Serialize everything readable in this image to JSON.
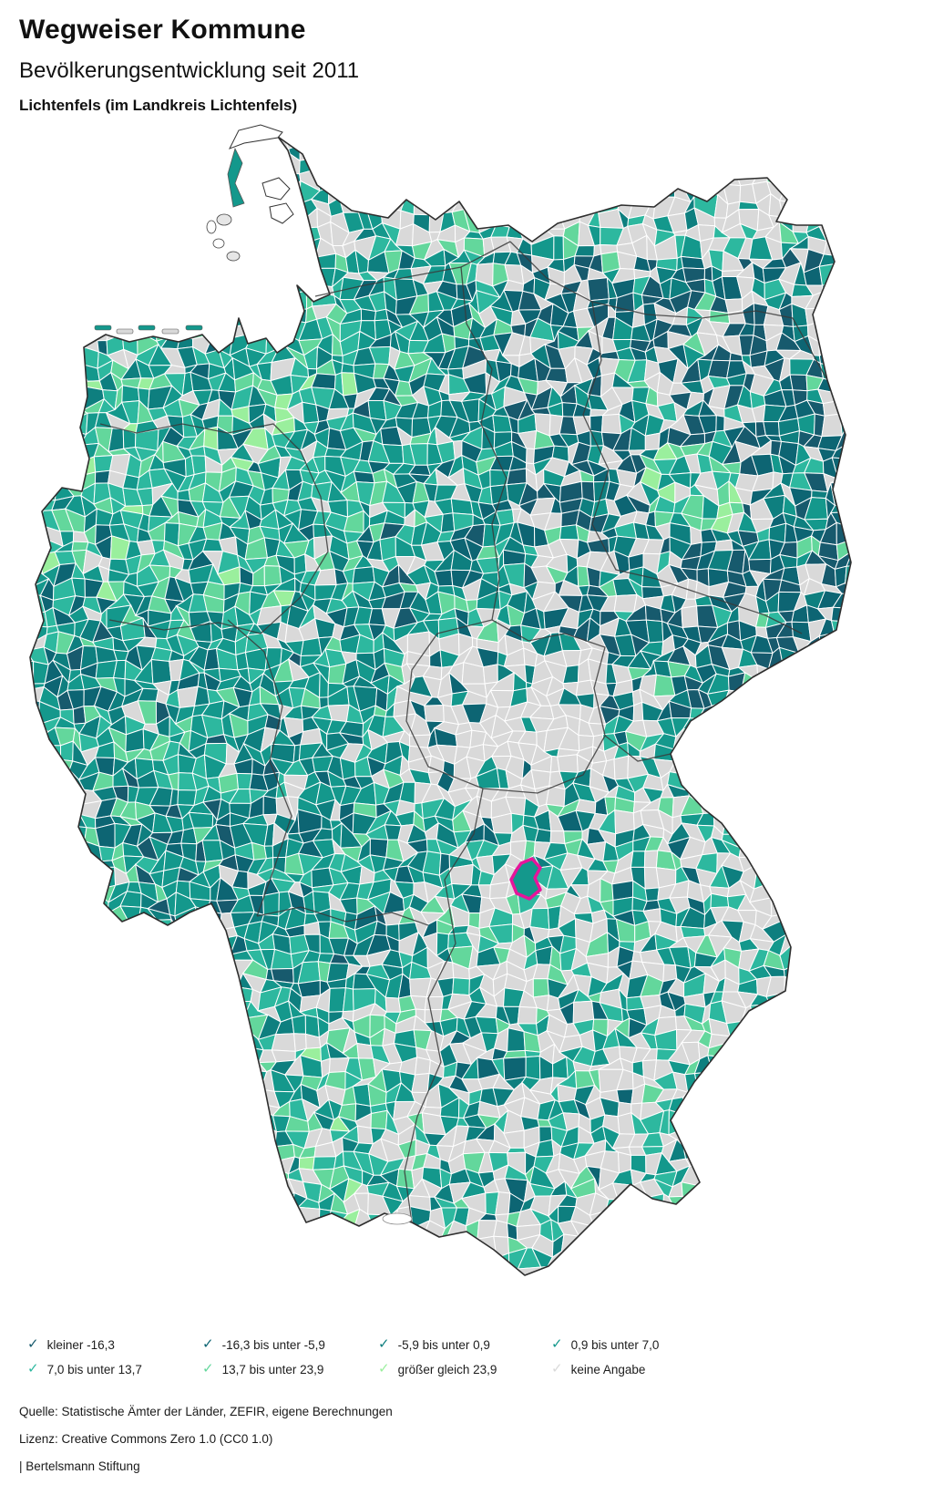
{
  "header": {
    "title": "Wegweiser Kommune",
    "subtitle": "Bevölkerungsentwicklung seit 2011",
    "region": "Lichtenfels (im Landkreis Lichtenfels)"
  },
  "legend": {
    "check_glyph": "✓",
    "items": [
      {
        "label": "kleiner -16,3",
        "color": "#175a6d"
      },
      {
        "label": "-16,3 bis unter -5,9",
        "color": "#0d6573"
      },
      {
        "label": "-5,9 bis unter 0,9",
        "color": "#0e7f7f"
      },
      {
        "label": "0,9 bis unter 7,0",
        "color": "#14988c"
      },
      {
        "label": "7,0 bis unter 13,7",
        "color": "#2db89f"
      },
      {
        "label": "13,7 bis unter 23,9",
        "color": "#63d79c"
      },
      {
        "label": "größer gleich 23,9",
        "color": "#9aef9d"
      },
      {
        "label": "keine Angabe",
        "color": "#d9d9d9"
      }
    ]
  },
  "map": {
    "highlighted_region": "Lichtenfels",
    "highlight_color": "#e6159b",
    "no_data_color": "#dcdcdc",
    "municipal_border_color": "#ffffff",
    "state_border_color": "#3a3a3a",
    "coast_border_color": "#2e2e2e"
  },
  "footer": {
    "source": "Quelle: Statistische Ämter der Länder, ZEFIR, eigene Berechnungen",
    "license": "Lizenz: Creative Commons Zero 1.0 (CC0 1.0)",
    "attribution": "| Bertelsmann Stiftung"
  }
}
